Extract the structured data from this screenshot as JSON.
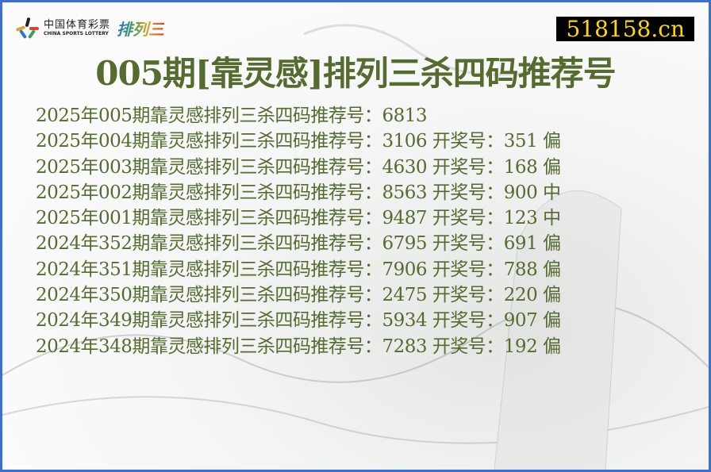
{
  "header": {
    "logo_cn": "中国体育彩票",
    "logo_en": "CHINA SPORTS LOTTERY",
    "logo_game": "排列三",
    "site": "518158.cn"
  },
  "title": "005期[靠灵感]排列三杀四码推荐号",
  "rows": [
    {
      "prefix": "2025年005期靠灵感排列三杀四码推荐号：",
      "rec": "6813",
      "draw_label": "",
      "draw": "",
      "result": ""
    },
    {
      "prefix": "2025年004期靠灵感排列三杀四码推荐号：",
      "rec": "3106",
      "draw_label": "开奖号：",
      "draw": "351",
      "result": "偏"
    },
    {
      "prefix": "2025年003期靠灵感排列三杀四码推荐号：",
      "rec": "4630",
      "draw_label": "开奖号：",
      "draw": "168",
      "result": "偏"
    },
    {
      "prefix": "2025年002期靠灵感排列三杀四码推荐号：",
      "rec": "8563",
      "draw_label": "开奖号：",
      "draw": "900",
      "result": "中"
    },
    {
      "prefix": "2025年001期靠灵感排列三杀四码推荐号：",
      "rec": "9487",
      "draw_label": "开奖号：",
      "draw": "123",
      "result": "中"
    },
    {
      "prefix": "2024年352期靠灵感排列三杀四码推荐号：",
      "rec": "6795",
      "draw_label": "开奖号：",
      "draw": "691",
      "result": "偏"
    },
    {
      "prefix": "2024年351期靠灵感排列三杀四码推荐号：",
      "rec": "7906",
      "draw_label": "开奖号：",
      "draw": "788",
      "result": "偏"
    },
    {
      "prefix": "2024年350期靠灵感排列三杀四码推荐号：",
      "rec": "2475",
      "draw_label": "开奖号：",
      "draw": "220",
      "result": "偏"
    },
    {
      "prefix": "2024年349期靠灵感排列三杀四码推荐号：",
      "rec": "5934",
      "draw_label": "开奖号：",
      "draw": "907",
      "result": "偏"
    },
    {
      "prefix": "2024年348期靠灵感排列三杀四码推荐号：",
      "rec": "7283",
      "draw_label": "开奖号：",
      "draw": "192",
      "result": "偏"
    }
  ],
  "colors": {
    "text": "#556b2f",
    "border": "#3b6fd6",
    "site_bg": "#000000",
    "site_text": "#ffd800"
  }
}
